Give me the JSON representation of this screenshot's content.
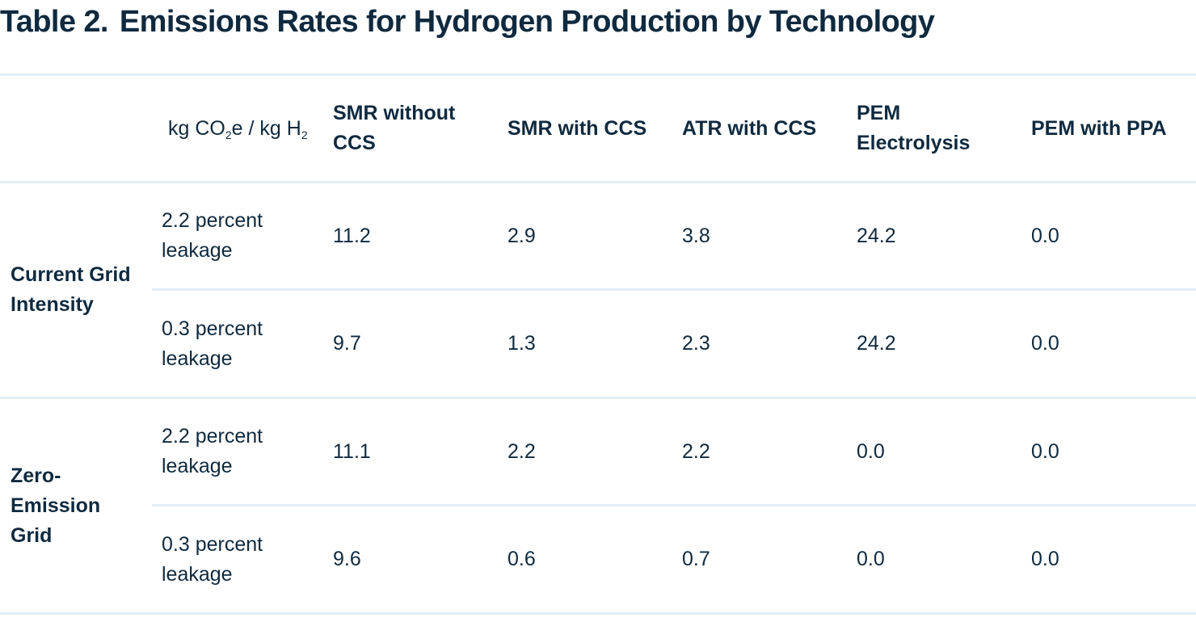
{
  "title": {
    "label": "Table 2.",
    "text": "Emissions Rates for Hydrogen Production by Technology"
  },
  "header": {
    "unit": {
      "prefix": "kg CO",
      "sub1": "2",
      "mid": "e / kg H",
      "sub2": "2"
    },
    "columns": [
      "SMR without CCS",
      "SMR with CCS",
      "ATR with CCS",
      "PEM Electrolysis",
      "PEM with PPA"
    ]
  },
  "groups": [
    {
      "label": "Current Grid Intensity",
      "rows": [
        {
          "scenario": "2.2 percent leakage",
          "values": [
            "11.2",
            "2.9",
            "3.8",
            "24.2",
            "0.0"
          ]
        },
        {
          "scenario": "0.3 percent leakage",
          "values": [
            "9.7",
            "1.3",
            "2.3",
            "24.2",
            "0.0"
          ]
        }
      ]
    },
    {
      "label": "Zero-Emission Grid",
      "rows": [
        {
          "scenario": "2.2 percent leakage",
          "values": [
            "11.1",
            "2.2",
            "2.2",
            "0.0",
            "0.0"
          ]
        },
        {
          "scenario": "0.3 percent leakage",
          "values": [
            "9.6",
            "0.6",
            "0.7",
            "0.0",
            "0.0"
          ]
        }
      ]
    }
  ]
}
